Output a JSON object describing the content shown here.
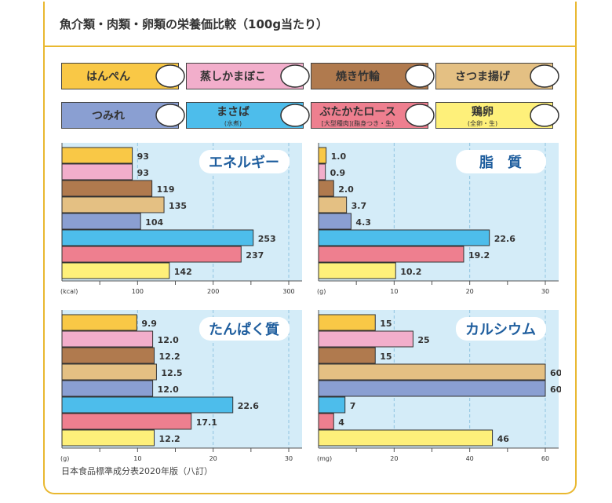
{
  "title": "魚介類・肉類・卵類の栄養価比較（100g当たり）",
  "legend": [
    {
      "label": "はんぺん",
      "sub": "",
      "color": "#F9C846",
      "icon": "hanpen-icon"
    },
    {
      "label": "蒸しかまぼこ",
      "sub": "",
      "color": "#F2AECB",
      "icon": "kamaboko-icon"
    },
    {
      "label": "焼き竹輪",
      "sub": "",
      "color": "#B07A4E",
      "icon": "chikuwa-icon"
    },
    {
      "label": "さつま揚げ",
      "sub": "",
      "color": "#E4C083",
      "icon": "satsumaage-icon"
    },
    {
      "label": "つみれ",
      "sub": "",
      "color": "#8A9FD2",
      "icon": "tsumire-icon"
    },
    {
      "label": "まさば",
      "sub": "(水煮)",
      "color": "#4DBDEB",
      "icon": "canned-mackerel-icon"
    },
    {
      "label": "ぶたかたロース",
      "sub": "[大型種肉](脂身つき・生)",
      "color": "#EE7F8F",
      "icon": "pork-icon"
    },
    {
      "label": "鶏卵",
      "sub": "(全卵・生)",
      "color": "#FEF07A",
      "icon": "egg-icon"
    }
  ],
  "chart_data": [
    {
      "type": "bar",
      "title": "エネルギー",
      "unit": "(kcal)",
      "xlim": [
        0,
        300
      ],
      "ticks": [
        100,
        200,
        300
      ],
      "minor": [
        50,
        150,
        250
      ],
      "values": [
        93,
        93,
        119,
        135,
        104,
        253,
        237,
        142
      ],
      "labels": [
        "93",
        "93",
        "119",
        "135",
        "104",
        "253",
        "237",
        "142"
      ]
    },
    {
      "type": "bar",
      "title": "脂　質",
      "unit": "(g)",
      "xlim": [
        0,
        30
      ],
      "ticks": [
        10,
        20,
        30
      ],
      "minor": [
        5,
        15,
        25
      ],
      "values": [
        1.0,
        0.9,
        2.0,
        3.7,
        4.3,
        22.6,
        19.2,
        10.2
      ],
      "labels": [
        "1.0",
        "0.9",
        "2.0",
        "3.7",
        "4.3",
        "22.6",
        "19.2",
        "10.2"
      ]
    },
    {
      "type": "bar",
      "title": "たんぱく質",
      "unit": "(g)",
      "xlim": [
        0,
        30
      ],
      "ticks": [
        10,
        20,
        30
      ],
      "minor": [
        5,
        15,
        25
      ],
      "values": [
        9.9,
        12.0,
        12.2,
        12.5,
        12.0,
        22.6,
        17.1,
        12.2
      ],
      "labels": [
        "9.9",
        "12.0",
        "12.2",
        "12.5",
        "12.0",
        "22.6",
        "17.1",
        "12.2"
      ]
    },
    {
      "type": "bar",
      "title": "カルシウム",
      "unit": "(mg)",
      "xlim": [
        0,
        60
      ],
      "ticks": [
        20,
        40,
        60
      ],
      "minor": [
        10,
        30,
        50
      ],
      "values": [
        15,
        25,
        15,
        60,
        60,
        7,
        4,
        46
      ],
      "labels": [
        "15",
        "25",
        "15",
        "60",
        "60",
        "7",
        "4",
        "46"
      ]
    }
  ],
  "note": "日本食品標準成分表2020年版（八訂）"
}
